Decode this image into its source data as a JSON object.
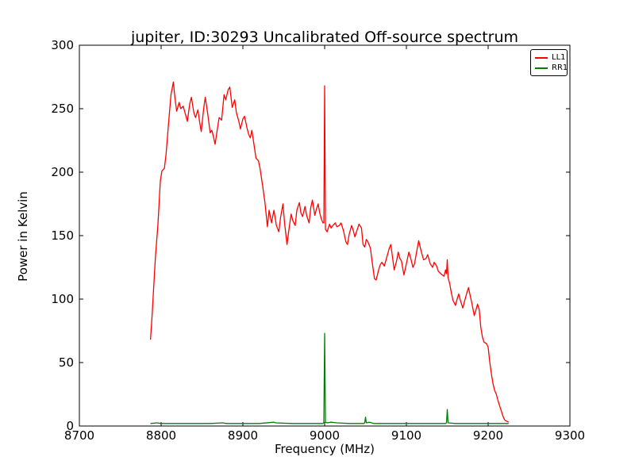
{
  "chart_data": {
    "type": "line",
    "title": "jupiter, ID:30293 Uncalibrated Off-source spectrum",
    "xlabel": "Frequency (MHz)",
    "ylabel": "Power in Kelvin",
    "xlim": [
      8700,
      9300
    ],
    "ylim": [
      0,
      300
    ],
    "xticks": [
      8700,
      8800,
      8900,
      9000,
      9100,
      9200,
      9300
    ],
    "yticks": [
      0,
      50,
      100,
      150,
      200,
      250,
      300
    ],
    "grid": false,
    "legend_position": "upper right",
    "frame_color": "#000000",
    "background_color": "#ffffff",
    "series": [
      {
        "name": "RR1",
        "color": "#008000",
        "points": [
          [
            8787,
            2
          ],
          [
            8795,
            2.5
          ],
          [
            8800,
            2
          ],
          [
            8820,
            2
          ],
          [
            8840,
            2
          ],
          [
            8860,
            2
          ],
          [
            8875,
            2.5
          ],
          [
            8880,
            2
          ],
          [
            8900,
            2
          ],
          [
            8920,
            2
          ],
          [
            8938,
            3
          ],
          [
            8940,
            2.5
          ],
          [
            8960,
            2
          ],
          [
            8980,
            2
          ],
          [
            8998,
            2
          ],
          [
            8999,
            3
          ],
          [
            9000,
            73
          ],
          [
            9001,
            3
          ],
          [
            9003,
            2.5
          ],
          [
            9008,
            3
          ],
          [
            9015,
            2.5
          ],
          [
            9030,
            2
          ],
          [
            9048,
            2
          ],
          [
            9049,
            2.5
          ],
          [
            9050,
            7
          ],
          [
            9051,
            2.5
          ],
          [
            9055,
            3
          ],
          [
            9060,
            2
          ],
          [
            9080,
            2
          ],
          [
            9100,
            2
          ],
          [
            9120,
            2
          ],
          [
            9140,
            2
          ],
          [
            9148,
            2
          ],
          [
            9149,
            2.5
          ],
          [
            9150,
            13
          ],
          [
            9151,
            2.5
          ],
          [
            9160,
            2
          ],
          [
            9180,
            2
          ],
          [
            9200,
            2
          ],
          [
            9210,
            2
          ],
          [
            9225,
            2
          ]
        ]
      },
      {
        "name": "LL1",
        "color": "#ff0000",
        "points": [
          [
            8787,
            68
          ],
          [
            8789,
            88
          ],
          [
            8791,
            110
          ],
          [
            8793,
            133
          ],
          [
            8796,
            158
          ],
          [
            8799,
            193
          ],
          [
            8801,
            201
          ],
          [
            8804,
            203
          ],
          [
            8806,
            214
          ],
          [
            8809,
            238
          ],
          [
            8812,
            261
          ],
          [
            8815,
            271
          ],
          [
            8817,
            258
          ],
          [
            8819,
            248
          ],
          [
            8822,
            255
          ],
          [
            8824,
            250
          ],
          [
            8827,
            252
          ],
          [
            8830,
            245
          ],
          [
            8832,
            240
          ],
          [
            8835,
            254
          ],
          [
            8837,
            259
          ],
          [
            8840,
            247
          ],
          [
            8842,
            243
          ],
          [
            8845,
            249
          ],
          [
            8847,
            240
          ],
          [
            8849,
            232
          ],
          [
            8852,
            250
          ],
          [
            8854,
            259
          ],
          [
            8857,
            246
          ],
          [
            8860,
            231
          ],
          [
            8862,
            233
          ],
          [
            8864,
            228
          ],
          [
            8866,
            222
          ],
          [
            8869,
            235
          ],
          [
            8871,
            243
          ],
          [
            8874,
            241
          ],
          [
            8877,
            261
          ],
          [
            8879,
            257
          ],
          [
            8882,
            265
          ],
          [
            8884,
            267
          ],
          [
            8887,
            251
          ],
          [
            8890,
            257
          ],
          [
            8892,
            247
          ],
          [
            8895,
            240
          ],
          [
            8897,
            234
          ],
          [
            8900,
            242
          ],
          [
            8902,
            244
          ],
          [
            8905,
            235
          ],
          [
            8907,
            230
          ],
          [
            8909,
            227
          ],
          [
            8911,
            233
          ],
          [
            8914,
            220
          ],
          [
            8916,
            211
          ],
          [
            8919,
            209
          ],
          [
            8921,
            203
          ],
          [
            8924,
            190
          ],
          [
            8927,
            176
          ],
          [
            8930,
            157
          ],
          [
            8932,
            170
          ],
          [
            8935,
            160
          ],
          [
            8938,
            170
          ],
          [
            8941,
            158
          ],
          [
            8944,
            153
          ],
          [
            8946,
            164
          ],
          [
            8949,
            175
          ],
          [
            8951,
            160
          ],
          [
            8954,
            143
          ],
          [
            8957,
            158
          ],
          [
            8959,
            167
          ],
          [
            8961,
            162
          ],
          [
            8964,
            158
          ],
          [
            8966,
            170
          ],
          [
            8969,
            176
          ],
          [
            8971,
            168
          ],
          [
            8973,
            165
          ],
          [
            8976,
            173
          ],
          [
            8978,
            166
          ],
          [
            8981,
            160
          ],
          [
            8983,
            172
          ],
          [
            8985,
            178
          ],
          [
            8988,
            166
          ],
          [
            8990,
            171
          ],
          [
            8992,
            175
          ],
          [
            8994,
            168
          ],
          [
            8996,
            163
          ],
          [
            8998,
            160
          ],
          [
            8999,
            160
          ],
          [
            9000,
            268
          ],
          [
            9001,
            155
          ],
          [
            9003,
            153
          ],
          [
            9006,
            159
          ],
          [
            9008,
            156
          ],
          [
            9010,
            158
          ],
          [
            9013,
            160
          ],
          [
            9015,
            157
          ],
          [
            9018,
            158
          ],
          [
            9020,
            160
          ],
          [
            9023,
            154
          ],
          [
            9026,
            145
          ],
          [
            9028,
            143
          ],
          [
            9030,
            151
          ],
          [
            9033,
            158
          ],
          [
            9035,
            154
          ],
          [
            9037,
            149
          ],
          [
            9040,
            155
          ],
          [
            9042,
            159
          ],
          [
            9045,
            156
          ],
          [
            9047,
            143
          ],
          [
            9049,
            141
          ],
          [
            9051,
            147
          ],
          [
            9053,
            145
          ],
          [
            9056,
            140
          ],
          [
            9058,
            130
          ],
          [
            9061,
            116
          ],
          [
            9063,
            115
          ],
          [
            9066,
            123
          ],
          [
            9068,
            127
          ],
          [
            9070,
            129
          ],
          [
            9073,
            126
          ],
          [
            9076,
            133
          ],
          [
            9079,
            140
          ],
          [
            9081,
            143
          ],
          [
            9083,
            133
          ],
          [
            9085,
            123
          ],
          [
            9088,
            130
          ],
          [
            9090,
            137
          ],
          [
            9092,
            132
          ],
          [
            9094,
            130
          ],
          [
            9097,
            119
          ],
          [
            9100,
            128
          ],
          [
            9103,
            137
          ],
          [
            9105,
            133
          ],
          [
            9108,
            125
          ],
          [
            9110,
            128
          ],
          [
            9113,
            139
          ],
          [
            9115,
            146
          ],
          [
            9118,
            138
          ],
          [
            9121,
            131
          ],
          [
            9124,
            132
          ],
          [
            9126,
            135
          ],
          [
            9129,
            128
          ],
          [
            9132,
            125
          ],
          [
            9134,
            129
          ],
          [
            9137,
            126
          ],
          [
            9139,
            122
          ],
          [
            9142,
            120
          ],
          [
            9144,
            119
          ],
          [
            9146,
            118
          ],
          [
            9148,
            123
          ],
          [
            9149,
            120
          ],
          [
            9150,
            131
          ],
          [
            9151,
            117
          ],
          [
            9153,
            112
          ],
          [
            9155,
            105
          ],
          [
            9157,
            99
          ],
          [
            9160,
            95
          ],
          [
            9162,
            100
          ],
          [
            9164,
            104
          ],
          [
            9166,
            99
          ],
          [
            9169,
            93
          ],
          [
            9171,
            98
          ],
          [
            9174,
            105
          ],
          [
            9176,
            109
          ],
          [
            9178,
            103
          ],
          [
            9180,
            97
          ],
          [
            9183,
            87
          ],
          [
            9185,
            91
          ],
          [
            9187,
            96
          ],
          [
            9189,
            92
          ],
          [
            9191,
            78
          ],
          [
            9193,
            70
          ],
          [
            9195,
            66
          ],
          [
            9198,
            65
          ],
          [
            9200,
            62
          ],
          [
            9202,
            50
          ],
          [
            9204,
            41
          ],
          [
            9206,
            33
          ],
          [
            9208,
            28
          ],
          [
            9210,
            25
          ],
          [
            9212,
            20
          ],
          [
            9214,
            16
          ],
          [
            9216,
            12
          ],
          [
            9218,
            8
          ],
          [
            9220,
            5
          ],
          [
            9222,
            4
          ],
          [
            9225,
            3
          ]
        ]
      }
    ],
    "legend_entries": [
      {
        "label": "LL1",
        "color": "#ff0000"
      },
      {
        "label": "RR1",
        "color": "#008000"
      }
    ]
  }
}
